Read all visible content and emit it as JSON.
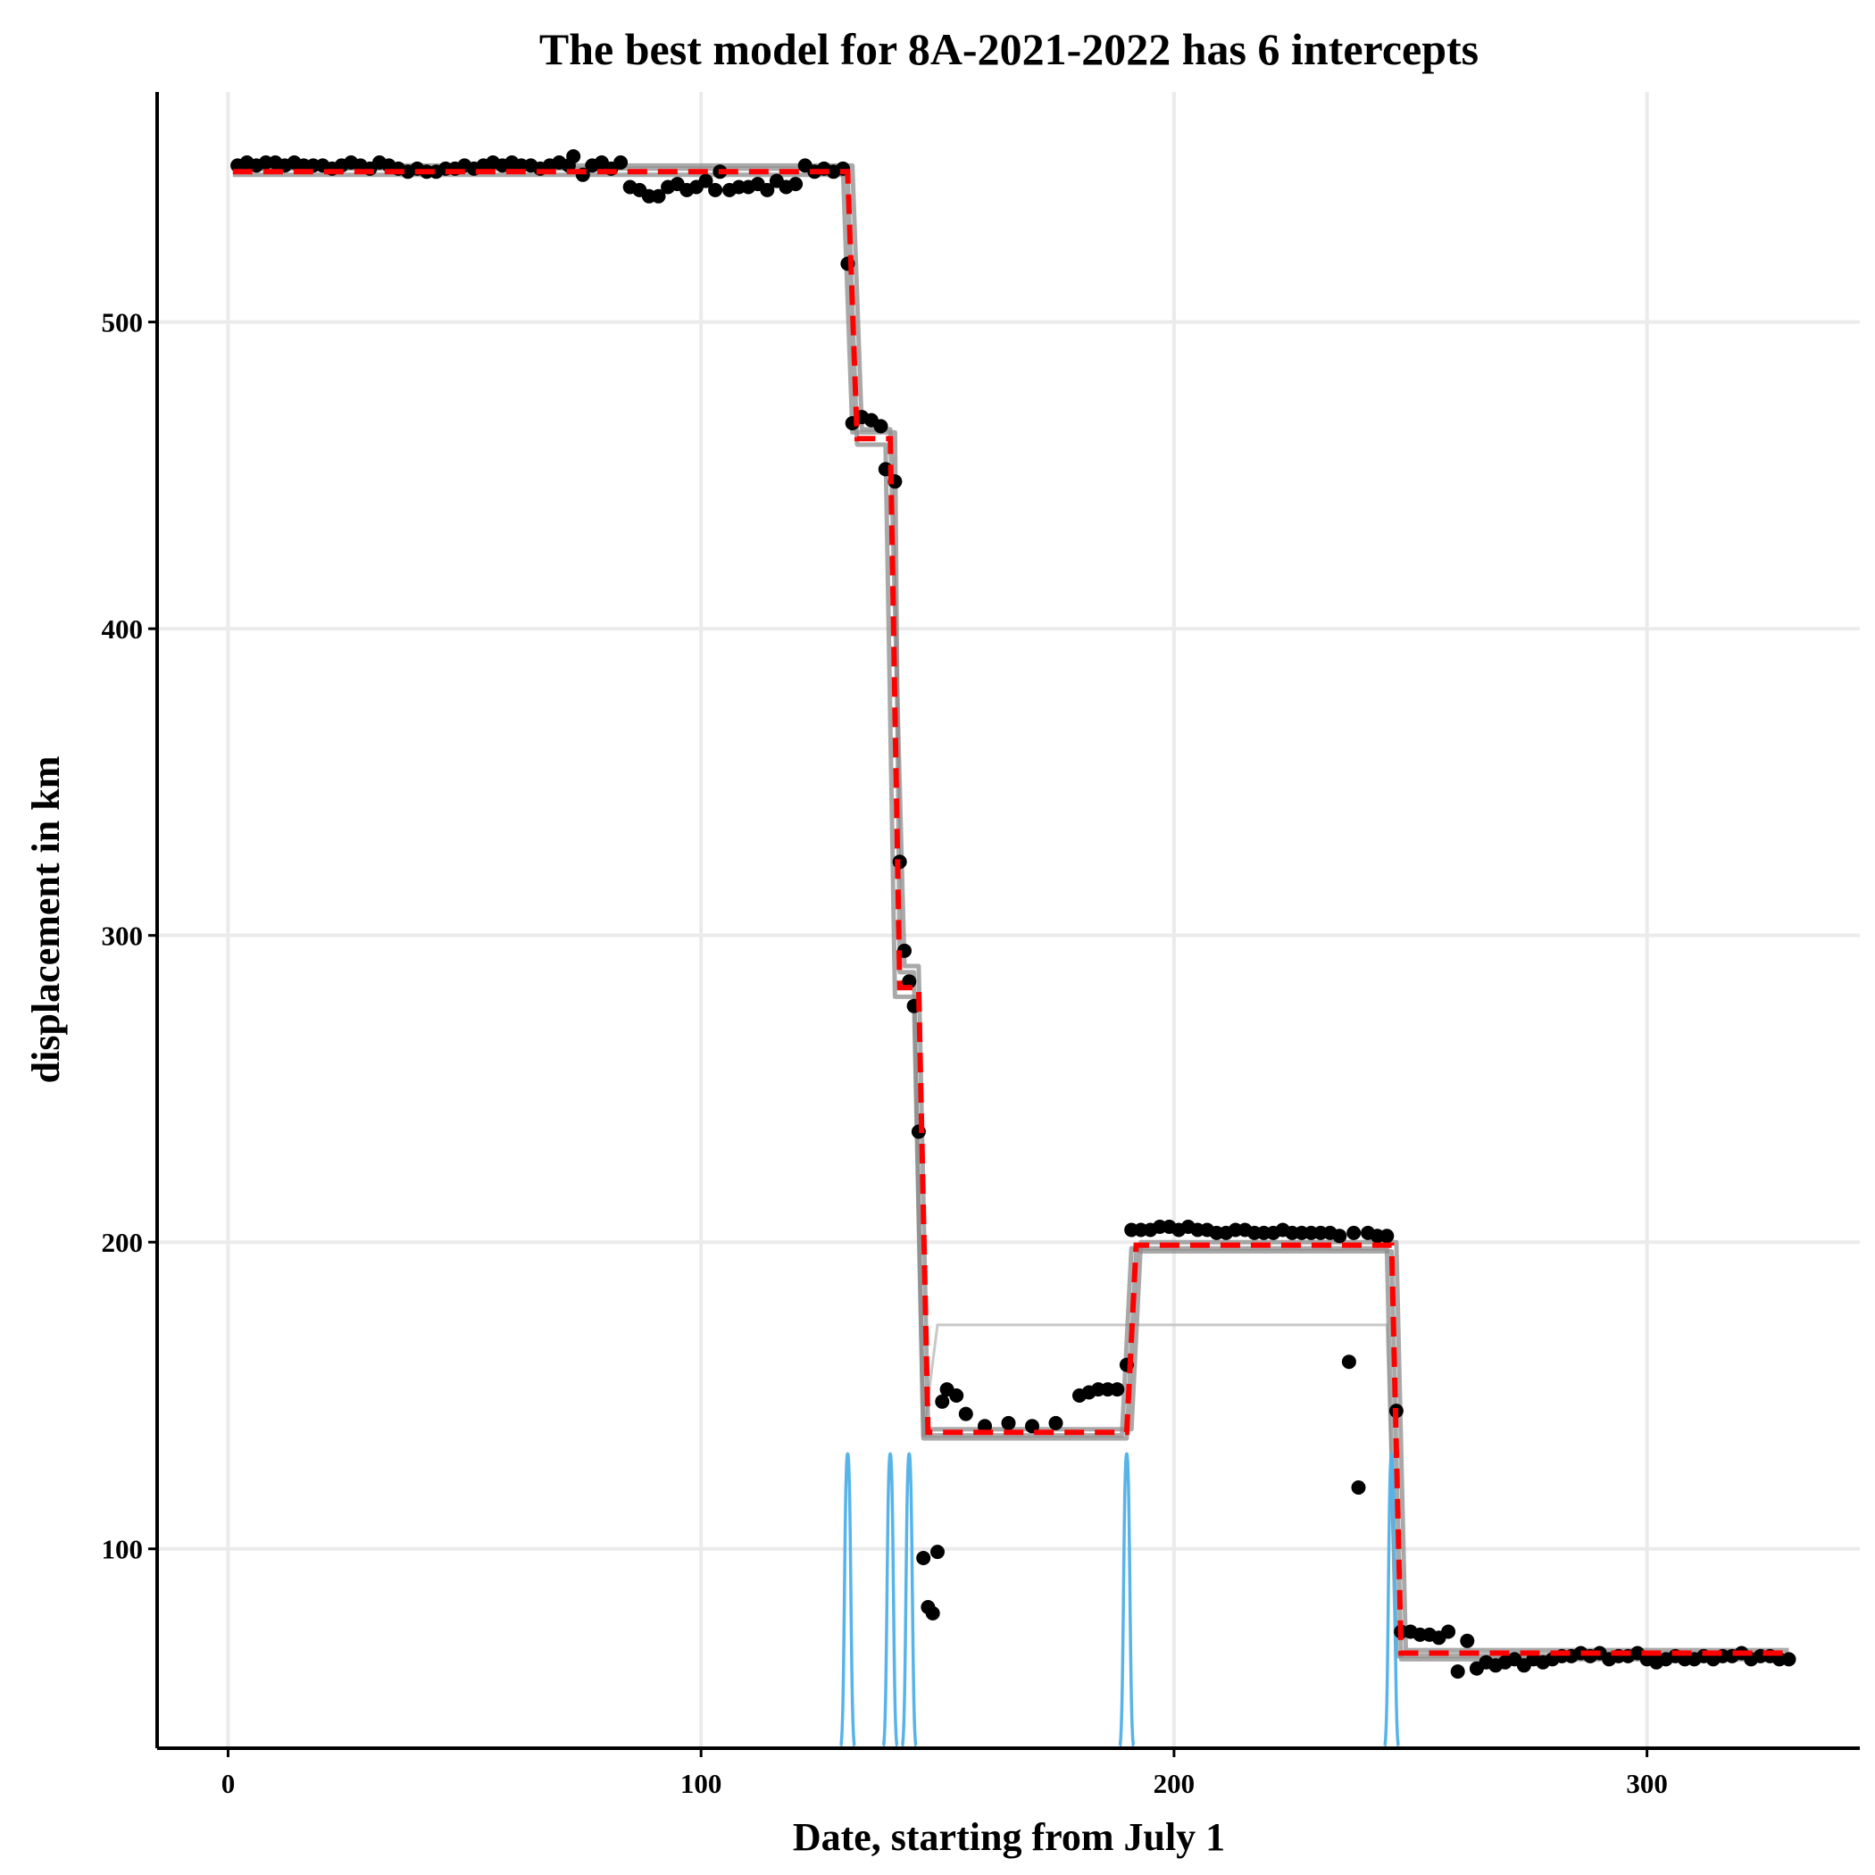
{
  "chart_data": {
    "type": "scatter",
    "title": "The best model for 8A-2021-2022 has 6 intercepts",
    "xlabel": "Date, starting from July 1",
    "ylabel": "displacement in km",
    "xlim": [
      -15,
      345
    ],
    "ylim": [
      35,
      575
    ],
    "xticks": [
      0,
      100,
      200,
      300
    ],
    "yticks": [
      100,
      200,
      300,
      400,
      500
    ],
    "grid": true,
    "colors": {
      "points": "#000000",
      "best_model": "#ff0000",
      "candidate_models": "#8c8c8c",
      "outlier_model": "#c8c8c8",
      "breakpoint_density": "#56b4e9"
    },
    "points": [
      [
        2,
        551
      ],
      [
        4,
        552
      ],
      [
        6,
        551
      ],
      [
        8,
        552
      ],
      [
        10,
        552
      ],
      [
        12,
        551
      ],
      [
        14,
        552
      ],
      [
        16,
        551
      ],
      [
        18,
        551
      ],
      [
        20,
        551
      ],
      [
        22,
        550
      ],
      [
        24,
        551
      ],
      [
        26,
        552
      ],
      [
        28,
        551
      ],
      [
        30,
        550
      ],
      [
        32,
        552
      ],
      [
        34,
        551
      ],
      [
        36,
        550
      ],
      [
        38,
        549
      ],
      [
        40,
        550
      ],
      [
        42,
        549
      ],
      [
        44,
        549
      ],
      [
        46,
        550
      ],
      [
        48,
        550
      ],
      [
        50,
        551
      ],
      [
        52,
        550
      ],
      [
        54,
        551
      ],
      [
        56,
        552
      ],
      [
        58,
        551
      ],
      [
        60,
        552
      ],
      [
        62,
        551
      ],
      [
        64,
        551
      ],
      [
        66,
        550
      ],
      [
        68,
        551
      ],
      [
        70,
        552
      ],
      [
        72,
        551
      ],
      [
        73,
        554
      ],
      [
        75,
        548
      ],
      [
        77,
        551
      ],
      [
        79,
        552
      ],
      [
        81,
        550
      ],
      [
        83,
        552
      ],
      [
        85,
        544
      ],
      [
        87,
        543
      ],
      [
        89,
        541
      ],
      [
        91,
        541
      ],
      [
        93,
        544
      ],
      [
        95,
        545
      ],
      [
        97,
        543
      ],
      [
        99,
        544
      ],
      [
        101,
        546
      ],
      [
        103,
        543
      ],
      [
        104,
        549
      ],
      [
        106,
        543
      ],
      [
        108,
        544
      ],
      [
        110,
        544
      ],
      [
        112,
        545
      ],
      [
        114,
        543
      ],
      [
        116,
        546
      ],
      [
        118,
        544
      ],
      [
        120,
        545
      ],
      [
        122,
        551
      ],
      [
        124,
        549
      ],
      [
        126,
        550
      ],
      [
        128,
        549
      ],
      [
        130,
        550
      ],
      [
        131,
        519
      ],
      [
        132,
        467
      ],
      [
        134,
        469
      ],
      [
        136,
        468
      ],
      [
        138,
        466
      ],
      [
        139,
        452
      ],
      [
        141,
        448
      ],
      [
        142,
        324
      ],
      [
        143,
        295
      ],
      [
        144,
        285
      ],
      [
        145,
        277
      ],
      [
        146,
        236
      ],
      [
        147,
        97
      ],
      [
        148,
        81
      ],
      [
        149,
        79
      ],
      [
        150,
        99
      ],
      [
        151,
        148
      ],
      [
        152,
        152
      ],
      [
        154,
        150
      ],
      [
        156,
        144
      ],
      [
        160,
        140
      ],
      [
        165,
        141
      ],
      [
        170,
        140
      ],
      [
        175,
        141
      ],
      [
        180,
        150
      ],
      [
        182,
        151
      ],
      [
        184,
        152
      ],
      [
        186,
        152
      ],
      [
        188,
        152
      ],
      [
        190,
        160
      ],
      [
        191,
        204
      ],
      [
        193,
        204
      ],
      [
        195,
        204
      ],
      [
        197,
        205
      ],
      [
        199,
        205
      ],
      [
        201,
        204
      ],
      [
        203,
        205
      ],
      [
        205,
        204
      ],
      [
        207,
        204
      ],
      [
        209,
        203
      ],
      [
        211,
        203
      ],
      [
        213,
        204
      ],
      [
        215,
        204
      ],
      [
        217,
        203
      ],
      [
        219,
        203
      ],
      [
        221,
        203
      ],
      [
        223,
        204
      ],
      [
        225,
        203
      ],
      [
        227,
        203
      ],
      [
        229,
        203
      ],
      [
        231,
        203
      ],
      [
        233,
        203
      ],
      [
        235,
        202
      ],
      [
        237,
        161
      ],
      [
        238,
        203
      ],
      [
        239,
        120
      ],
      [
        241,
        203
      ],
      [
        243,
        202
      ],
      [
        245,
        202
      ],
      [
        247,
        145
      ],
      [
        248,
        73
      ],
      [
        250,
        73
      ],
      [
        252,
        72
      ],
      [
        254,
        72
      ],
      [
        256,
        71
      ],
      [
        258,
        73
      ],
      [
        260,
        60
      ],
      [
        262,
        70
      ],
      [
        264,
        61
      ],
      [
        266,
        63
      ],
      [
        268,
        62
      ],
      [
        270,
        63
      ],
      [
        272,
        64
      ],
      [
        274,
        62
      ],
      [
        276,
        64
      ],
      [
        278,
        63
      ],
      [
        280,
        64
      ],
      [
        282,
        65
      ],
      [
        284,
        65
      ],
      [
        286,
        66
      ],
      [
        288,
        65
      ],
      [
        290,
        66
      ],
      [
        292,
        64
      ],
      [
        294,
        65
      ],
      [
        296,
        65
      ],
      [
        298,
        66
      ],
      [
        300,
        64
      ],
      [
        302,
        63
      ],
      [
        304,
        64
      ],
      [
        306,
        65
      ],
      [
        308,
        64
      ],
      [
        310,
        64
      ],
      [
        312,
        65
      ],
      [
        314,
        64
      ],
      [
        316,
        65
      ],
      [
        318,
        65
      ],
      [
        320,
        66
      ],
      [
        322,
        64
      ],
      [
        324,
        65
      ],
      [
        326,
        65
      ],
      [
        328,
        64
      ],
      [
        330,
        64
      ]
    ],
    "best_model": [
      [
        1,
        549
      ],
      [
        131,
        549
      ],
      [
        133,
        462
      ],
      [
        140,
        462
      ],
      [
        142,
        283
      ],
      [
        146,
        283
      ],
      [
        148,
        138
      ],
      [
        190,
        138
      ],
      [
        192,
        199
      ],
      [
        246,
        199
      ],
      [
        248,
        66
      ],
      [
        330,
        66
      ]
    ],
    "candidate_models": [
      [
        [
          1,
          550
        ],
        [
          130,
          550
        ],
        [
          132,
          464
        ],
        [
          141,
          464
        ],
        [
          142,
          288
        ],
        [
          145,
          288
        ],
        [
          147,
          137
        ],
        [
          189,
          137
        ],
        [
          191,
          198
        ],
        [
          245,
          198
        ],
        [
          247,
          65
        ],
        [
          329,
          65
        ]
      ],
      [
        [
          1,
          548
        ],
        [
          131,
          548
        ],
        [
          133,
          460
        ],
        [
          139,
          460
        ],
        [
          141,
          280
        ],
        [
          145,
          280
        ],
        [
          147,
          136
        ],
        [
          190,
          136
        ],
        [
          192,
          197
        ],
        [
          246,
          197
        ],
        [
          248,
          64
        ],
        [
          330,
          64
        ]
      ],
      [
        [
          1,
          551
        ],
        [
          132,
          551
        ],
        [
          134,
          465
        ],
        [
          140,
          465
        ],
        [
          143,
          290
        ],
        [
          146,
          290
        ],
        [
          148,
          139
        ],
        [
          191,
          139
        ],
        [
          193,
          200
        ],
        [
          247,
          200
        ],
        [
          249,
          67
        ],
        [
          330,
          67
        ]
      ]
    ],
    "outlier_model": [
      [
        147,
        137
      ],
      [
        150,
        173
      ],
      [
        245,
        173
      ],
      [
        247,
        66
      ],
      [
        330,
        66
      ]
    ],
    "breakpoint_peaks": [
      131,
      140,
      144,
      190,
      246
    ],
    "breakpoint_peak_height": 131
  }
}
